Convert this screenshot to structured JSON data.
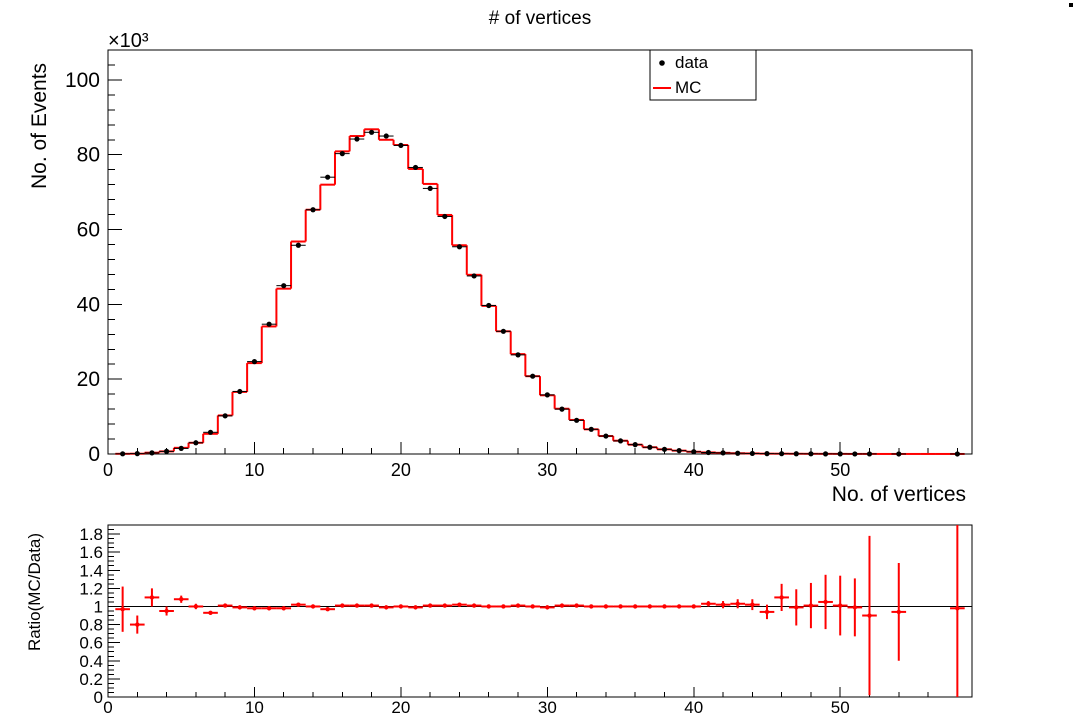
{
  "chart_data": [
    {
      "type": "histogram",
      "title": "# of vertices",
      "xlabel": "No. of vertices",
      "ylabel": "No. of Events",
      "y_scale_label": "×10³",
      "xlim": [
        0,
        59
      ],
      "ylim": [
        0,
        108
      ],
      "x_ticks": [
        0,
        10,
        20,
        30,
        40,
        50
      ],
      "y_ticks": [
        0,
        20,
        40,
        60,
        80,
        100
      ],
      "legend": {
        "position": "top-right",
        "entries": [
          "data",
          "MC"
        ]
      },
      "colors": {
        "data": "#000000",
        "mc": "#ff0000"
      },
      "series": [
        {
          "name": "data",
          "style": "markers",
          "x": [
            1,
            2,
            3,
            4,
            5,
            6,
            7,
            8,
            9,
            10,
            11,
            12,
            13,
            14,
            15,
            16,
            17,
            18,
            19,
            20,
            21,
            22,
            23,
            24,
            25,
            26,
            27,
            28,
            29,
            30,
            31,
            32,
            33,
            34,
            35,
            36,
            37,
            38,
            39,
            40,
            41,
            42,
            43,
            44,
            45,
            46,
            47,
            48,
            49,
            50,
            51,
            52,
            54,
            58
          ],
          "values": [
            0.05,
            0.1,
            0.3,
            0.7,
            1.5,
            3.0,
            5.8,
            10.2,
            16.7,
            24.7,
            34.7,
            45.0,
            55.8,
            65.3,
            74.0,
            80.3,
            84.2,
            86.0,
            85.0,
            82.5,
            76.6,
            71.0,
            63.5,
            55.4,
            47.6,
            39.7,
            32.8,
            26.5,
            20.8,
            15.8,
            12.0,
            9.0,
            6.6,
            4.8,
            3.5,
            2.5,
            1.8,
            1.25,
            0.9,
            0.6,
            0.4,
            0.3,
            0.2,
            0.15,
            0.1,
            0.08,
            0.06,
            0.05,
            0.04,
            0.03,
            0.02,
            0.02,
            0.01,
            0.01
          ]
        },
        {
          "name": "MC",
          "style": "step",
          "x": [
            1,
            2,
            3,
            4,
            5,
            6,
            7,
            8,
            9,
            10,
            11,
            12,
            13,
            14,
            15,
            16,
            17,
            18,
            19,
            20,
            21,
            22,
            23,
            24,
            25,
            26,
            27,
            28,
            29,
            30,
            31,
            32,
            33,
            34,
            35,
            36,
            37,
            38,
            39,
            40,
            41,
            42,
            43,
            44,
            45,
            46,
            47,
            48,
            49,
            50,
            51,
            52,
            53,
            54,
            55,
            56,
            57,
            58
          ],
          "values": [
            0.05,
            0.08,
            0.35,
            0.7,
            1.65,
            3.0,
            5.4,
            10.3,
            16.6,
            24.3,
            34.1,
            44.2,
            56.8,
            65.3,
            72.0,
            80.9,
            85.0,
            86.8,
            84.0,
            82.6,
            76.2,
            72.2,
            63.9,
            55.8,
            47.9,
            39.6,
            32.8,
            26.7,
            20.8,
            15.7,
            12.1,
            9.1,
            6.6,
            4.8,
            3.55,
            2.5,
            1.8,
            1.25,
            0.9,
            0.6,
            0.42,
            0.31,
            0.2,
            0.15,
            0.09,
            0.08,
            0.06,
            0.05,
            0.04,
            0.03,
            0.02,
            0.02,
            0.01,
            0.01,
            0.01,
            0.01,
            0.01,
            0.01
          ]
        }
      ]
    },
    {
      "type": "scatter",
      "ylabel": "Ratio(MC/Data)",
      "xlim": [
        0,
        59
      ],
      "ylim": [
        0,
        1.9
      ],
      "x_ticks": [
        0,
        10,
        20,
        30,
        40,
        50
      ],
      "y_ticks": [
        0,
        0.2,
        0.4,
        0.6,
        0.8,
        1,
        1.2,
        1.4,
        1.6,
        1.8
      ],
      "y_tick_labels": [
        "0",
        "0.2",
        "0.4",
        "0.6",
        "0.8",
        "1",
        "1.2",
        "1.4",
        "1.6",
        "1.8"
      ],
      "reference_line": 1,
      "colors": {
        "points": "#ff0000",
        "reference": "#000000"
      },
      "series": [
        {
          "name": "",
          "x": [
            1,
            2,
            3,
            4,
            5,
            6,
            7,
            8,
            9,
            10,
            11,
            12,
            13,
            14,
            15,
            16,
            17,
            18,
            19,
            20,
            21,
            22,
            23,
            24,
            25,
            26,
            27,
            28,
            29,
            30,
            31,
            32,
            33,
            34,
            35,
            36,
            37,
            38,
            39,
            40,
            41,
            42,
            43,
            44,
            45,
            46,
            47,
            48,
            49,
            50,
            51,
            52,
            54,
            58
          ],
          "values": [
            0.97,
            0.8,
            1.1,
            0.95,
            1.08,
            1.0,
            0.93,
            1.01,
            0.99,
            0.98,
            0.98,
            0.98,
            1.02,
            1.0,
            0.97,
            1.01,
            1.01,
            1.01,
            0.99,
            1.0,
            0.99,
            1.01,
            1.01,
            1.02,
            1.01,
            1.0,
            1.0,
            1.01,
            1.0,
            0.99,
            1.01,
            1.01,
            1.0,
            1.0,
            1.0,
            1.0,
            1.0,
            1.0,
            1.0,
            1.0,
            1.03,
            1.02,
            1.03,
            1.02,
            0.94,
            1.1,
            0.99,
            1.01,
            1.05,
            1.01,
            0.99,
            0.9,
            0.94,
            0.98
          ],
          "errors": [
            0.25,
            0.1,
            0.1,
            0.05,
            0.04,
            0.03,
            0.02,
            0.02,
            0.01,
            0.01,
            0.01,
            0.01,
            0.01,
            0.01,
            0.01,
            0.01,
            0.01,
            0.01,
            0.01,
            0.01,
            0.01,
            0.01,
            0.01,
            0.01,
            0.01,
            0.01,
            0.01,
            0.01,
            0.01,
            0.01,
            0.01,
            0.01,
            0.01,
            0.01,
            0.01,
            0.01,
            0.01,
            0.01,
            0.02,
            0.02,
            0.03,
            0.04,
            0.05,
            0.06,
            0.08,
            0.15,
            0.2,
            0.25,
            0.3,
            0.33,
            0.32,
            0.88,
            0.54,
            1.0
          ]
        }
      ]
    }
  ]
}
